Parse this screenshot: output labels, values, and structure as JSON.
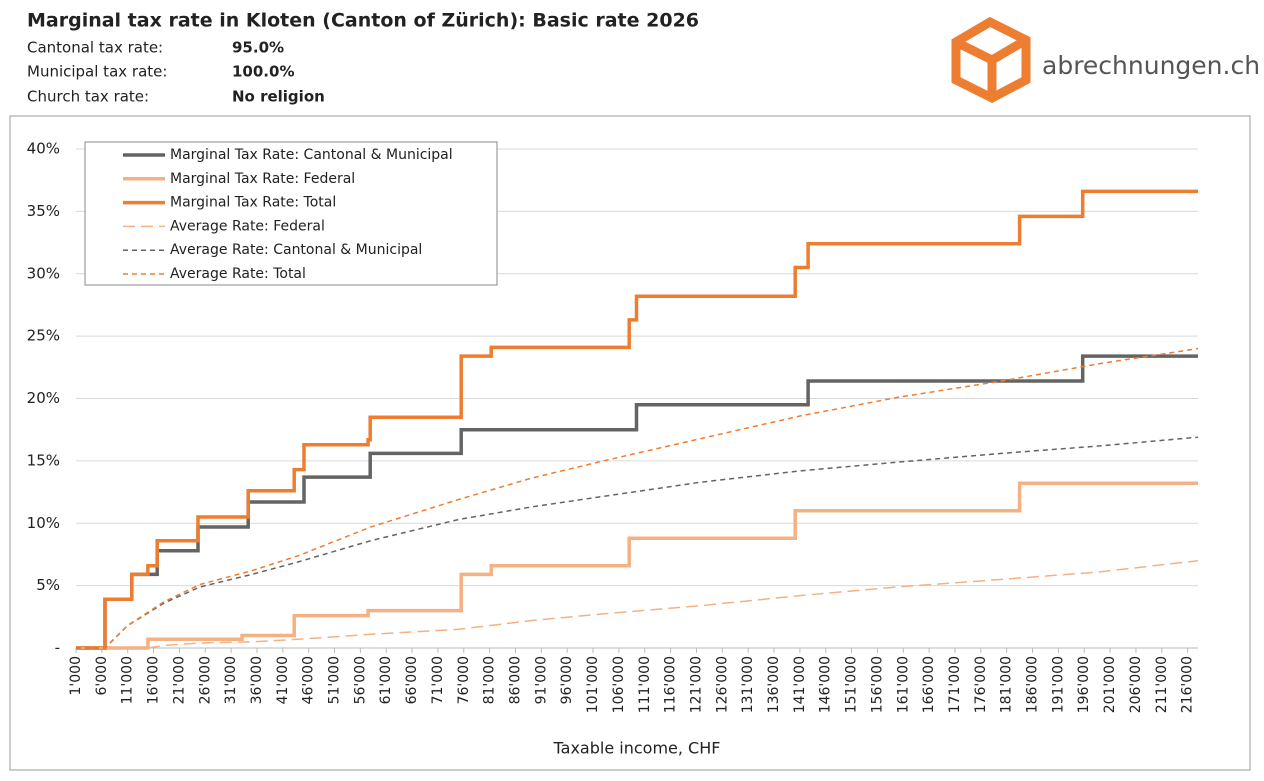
{
  "header": {
    "title": "Marginal tax rate in Kloten (Canton of Zürich): Basic rate 2026",
    "rows": [
      [
        "Cantonal tax rate:",
        "95.0%"
      ],
      [
        "Municipal tax rate:",
        "100.0%"
      ],
      [
        "Church tax rate:",
        "No religion"
      ]
    ],
    "logo": "abrechnungen.ch"
  },
  "chart_data": {
    "type": "line",
    "x_label": "Taxable income, CHF",
    "grid": true,
    "legend": "top-left",
    "xlim": [
      1000,
      218000
    ],
    "ylim": [
      0,
      40
    ],
    "yticks": [
      {
        "value": 0,
        "label": "-"
      },
      {
        "value": 5,
        "label": "5%"
      },
      {
        "value": 10,
        "label": "10%"
      },
      {
        "value": 15,
        "label": "15%"
      },
      {
        "value": 20,
        "label": "20%"
      },
      {
        "value": 25,
        "label": "25%"
      },
      {
        "value": 30,
        "label": "30%"
      },
      {
        "value": 35,
        "label": "35%"
      },
      {
        "value": 40,
        "label": "40%"
      }
    ],
    "xticks": [
      {
        "value": 1000,
        "label": "1'000"
      },
      {
        "value": 6000,
        "label": "6'000"
      },
      {
        "value": 11000,
        "label": "11'000"
      },
      {
        "value": 16000,
        "label": "16'000"
      },
      {
        "value": 21000,
        "label": "21'000"
      },
      {
        "value": 26000,
        "label": "26'000"
      },
      {
        "value": 31000,
        "label": "31'000"
      },
      {
        "value": 36000,
        "label": "36'000"
      },
      {
        "value": 41000,
        "label": "41'000"
      },
      {
        "value": 46000,
        "label": "46'000"
      },
      {
        "value": 51000,
        "label": "51'000"
      },
      {
        "value": 56000,
        "label": "56'000"
      },
      {
        "value": 61000,
        "label": "61'000"
      },
      {
        "value": 66000,
        "label": "66'000"
      },
      {
        "value": 71000,
        "label": "71'000"
      },
      {
        "value": 76000,
        "label": "76'000"
      },
      {
        "value": 81000,
        "label": "81'000"
      },
      {
        "value": 86000,
        "label": "86'000"
      },
      {
        "value": 91000,
        "label": "91'000"
      },
      {
        "value": 96000,
        "label": "96'000"
      },
      {
        "value": 101000,
        "label": "101'000"
      },
      {
        "value": 106000,
        "label": "106'000"
      },
      {
        "value": 111000,
        "label": "111'000"
      },
      {
        "value": 116000,
        "label": "116'000"
      },
      {
        "value": 121000,
        "label": "121'000"
      },
      {
        "value": 126000,
        "label": "126'000"
      },
      {
        "value": 131000,
        "label": "131'000"
      },
      {
        "value": 136000,
        "label": "136'000"
      },
      {
        "value": 141000,
        "label": "141'000"
      },
      {
        "value": 146000,
        "label": "146'000"
      },
      {
        "value": 151000,
        "label": "151'000"
      },
      {
        "value": 156000,
        "label": "156'000"
      },
      {
        "value": 161000,
        "label": "161'000"
      },
      {
        "value": 166000,
        "label": "166'000"
      },
      {
        "value": 171000,
        "label": "171'000"
      },
      {
        "value": 176000,
        "label": "176'000"
      },
      {
        "value": 181000,
        "label": "181'000"
      },
      {
        "value": 186000,
        "label": "186'000"
      },
      {
        "value": 191000,
        "label": "191'000"
      },
      {
        "value": 196000,
        "label": "196'000"
      },
      {
        "value": 201000,
        "label": "201'000"
      },
      {
        "value": 206000,
        "label": "206'000"
      },
      {
        "value": 211000,
        "label": "211'000"
      },
      {
        "value": 216000,
        "label": "216'000"
      }
    ],
    "series": [
      {
        "name": "Marginal Tax Rate: Cantonal & Municipal",
        "color": "#646464",
        "style": "solid",
        "x": [
          1000,
          6600,
          6600,
          11800,
          11800,
          16700,
          16700,
          24600,
          24600,
          34300,
          34300,
          45100,
          45100,
          57900,
          57900,
          75500,
          75500,
          109400,
          109400,
          142600,
          142600,
          195700,
          195700,
          218000
        ],
        "values": [
          0,
          0,
          3.9,
          3.9,
          5.9,
          5.9,
          7.8,
          7.8,
          9.7,
          9.7,
          11.7,
          11.7,
          13.7,
          13.7,
          15.6,
          15.6,
          17.5,
          17.5,
          19.5,
          19.5,
          21.4,
          21.4,
          23.4,
          23.4
        ]
      },
      {
        "name": "Marginal Tax Rate: Federal",
        "color": "#f4b183",
        "style": "solid",
        "x": [
          1000,
          14900,
          14900,
          33100,
          33100,
          43200,
          43200,
          57500,
          57500,
          75500,
          75500,
          81300,
          81300,
          108000,
          108000,
          140100,
          140100,
          183500,
          183500,
          218000
        ],
        "values": [
          0,
          0,
          0.7,
          0.7,
          1.0,
          1.0,
          2.6,
          2.6,
          3.0,
          3.0,
          5.9,
          5.9,
          6.6,
          6.6,
          8.8,
          8.8,
          11.0,
          11.0,
          13.2,
          13.2
        ]
      },
      {
        "name": "Marginal Tax Rate: Total",
        "color": "#ed7d31",
        "style": "solid",
        "x": [
          1000,
          6600,
          6600,
          11800,
          11800,
          14900,
          14900,
          16700,
          16700,
          24600,
          24600,
          34300,
          34300,
          43200,
          43200,
          45100,
          45100,
          57500,
          57500,
          57900,
          57900,
          75500,
          75500,
          81300,
          81300,
          108000,
          108000,
          109400,
          109400,
          140100,
          140100,
          142600,
          142600,
          183500,
          183500,
          195700,
          195700,
          218000
        ],
        "values": [
          0,
          0,
          3.9,
          3.9,
          5.9,
          5.9,
          6.6,
          6.6,
          8.6,
          8.6,
          10.5,
          10.5,
          12.6,
          12.6,
          14.3,
          14.3,
          16.3,
          16.3,
          16.7,
          16.7,
          18.5,
          18.5,
          23.4,
          23.4,
          24.1,
          24.1,
          26.3,
          26.3,
          28.2,
          28.2,
          30.5,
          30.5,
          32.4,
          32.4,
          34.6,
          34.6,
          36.6,
          36.6
        ]
      },
      {
        "name": "Average Rate: Federal",
        "color": "#f4b183",
        "style": "longdash",
        "x": [
          1000,
          14900,
          18000,
          25000,
          35000,
          44000,
          58000,
          75000,
          89000,
          102000,
          122000,
          141000,
          160000,
          180000,
          199000,
          218000
        ],
        "values": [
          0,
          0,
          0.2,
          0.4,
          0.5,
          0.7,
          1.1,
          1.5,
          2.2,
          2.7,
          3.4,
          4.2,
          4.9,
          5.5,
          6.1,
          7.0
        ]
      },
      {
        "name": "Average Rate: Cantonal & Municipal",
        "color": "#646464",
        "style": "dash",
        "x": [
          1000,
          6600,
          11000,
          18000,
          25000,
          35000,
          44000,
          58000,
          75000,
          89000,
          102000,
          122000,
          141000,
          160000,
          180000,
          199000,
          218000
        ],
        "values": [
          0,
          0,
          1.8,
          3.6,
          4.9,
          5.9,
          6.9,
          8.6,
          10.3,
          11.3,
          12.1,
          13.3,
          14.2,
          14.9,
          15.6,
          16.2,
          16.9
        ]
      },
      {
        "name": "Average Rate: Total",
        "color": "#ed7d31",
        "style": "dash",
        "x": [
          1000,
          6600,
          11000,
          18000,
          25000,
          35000,
          44000,
          58000,
          75000,
          89000,
          102000,
          122000,
          141000,
          160000,
          180000,
          199000,
          218000
        ],
        "values": [
          0,
          0,
          1.8,
          3.7,
          5.1,
          6.2,
          7.4,
          9.7,
          11.9,
          13.6,
          14.9,
          16.8,
          18.6,
          20.1,
          21.4,
          22.8,
          24.0
        ]
      }
    ]
  }
}
